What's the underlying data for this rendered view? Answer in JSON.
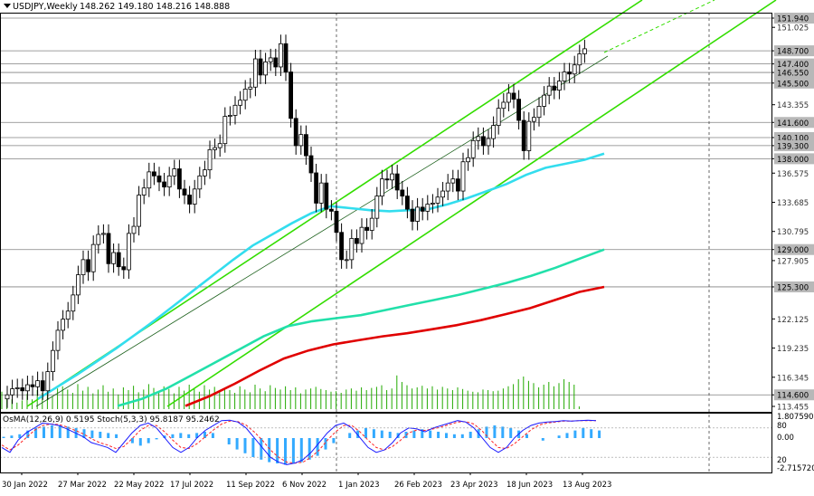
{
  "header": {
    "symbol_label": "USDJPY,Weekly",
    "ohlc_label": "148.262 149.180 148.216 148.888"
  },
  "indicator_label": "OsMA(12,26,9) 0.5195 Stoch(5,3,3) 95.8187 95.2462",
  "colors": {
    "background": "#ffffff",
    "candle": "#000000",
    "ema_fast": "#33ddee",
    "ema_mid": "#22e0aa",
    "ema_slow": "#e00000",
    "channel": "#33dd00",
    "hline": "#808080",
    "volume": "#22aa00",
    "osma": "#33aaff",
    "stoch_main": "#1a1aff",
    "stoch_signal": "#ff2222"
  },
  "chart_data": {
    "type": "candlestick",
    "ylim": [
      113.455,
      153.5
    ],
    "price_ticks": [
      "151.940",
      "151.025",
      "148.700",
      "147.400",
      "146.550",
      "145.500",
      "143.355",
      "141.600",
      "140.100",
      "139.300",
      "138.000",
      "136.575",
      "133.685",
      "130.795",
      "129.000",
      "127.905",
      "125.300",
      "122.125",
      "119.235",
      "116.345",
      "114.600",
      "113.455"
    ],
    "level_labels": [
      "151.940",
      "148.700",
      "147.400",
      "146.550",
      "145.500",
      "141.600",
      "140.100",
      "139.300",
      "138.000",
      "129.000",
      "125.300",
      "114.600"
    ],
    "x_labels": [
      "30 Jan 2022",
      "27 Mar 2022",
      "22 May 2022",
      "17 Jul 2022",
      "11 Sep 2022",
      "6 Nov 2022",
      "1 Jan 2023",
      "26 Feb 2023",
      "23 Apr 2023",
      "18 Jun 2023",
      "13 Aug 2023"
    ],
    "close": [
      114.6,
      115.2,
      115.3,
      115.0,
      115.6,
      115.4,
      116.0,
      115.0,
      116.9,
      119.0,
      121.0,
      122.1,
      122.9,
      124.5,
      126.5,
      128.0,
      126.8,
      129.5,
      130.5,
      130.6,
      127.6,
      128.7,
      127.3,
      127.0,
      130.6,
      131.3,
      134.4,
      135.1,
      136.7,
      136.3,
      135.7,
      135.2,
      136.3,
      137.0,
      135.0,
      134.4,
      133.5,
      135.0,
      136.3,
      136.9,
      138.9,
      139.1,
      139.5,
      142.2,
      142.3,
      143.3,
      143.8,
      144.9,
      145.1,
      147.9,
      146.3,
      147.6,
      148.0,
      147.1,
      149.4,
      146.6,
      142.0,
      139.3,
      140.4,
      138.3,
      136.6,
      133.6,
      135.6,
      133.0,
      132.8,
      130.7,
      128.0,
      128.0,
      130.1,
      129.6,
      131.2,
      130.9,
      132.1,
      134.3,
      136.0,
      135.9,
      136.5,
      134.9,
      134.3,
      133.0,
      131.8,
      133.2,
      132.8,
      133.5,
      133.6,
      134.2,
      134.8,
      135.6,
      136.0,
      134.8,
      137.7,
      138.1,
      139.8,
      140.2,
      139.3,
      140.0,
      141.3,
      143.0,
      143.6,
      144.5,
      143.9,
      141.8,
      138.8,
      141.7,
      142.1,
      143.2,
      144.3,
      145.2,
      144.8,
      145.7,
      146.6,
      146.4,
      147.3,
      148.4,
      148.9
    ],
    "ema_fast": [
      114.2,
      115.4,
      116.6,
      117.9,
      119.2,
      120.6,
      122.0,
      123.5,
      125.0,
      126.5,
      128.0,
      129.4,
      130.5,
      131.6,
      132.6,
      133.3,
      133.1,
      132.9,
      132.8,
      132.9,
      133.0,
      133.5,
      134.1,
      134.8,
      135.5,
      136.4,
      137.1,
      137.5,
      137.9,
      138.5
    ],
    "ema_mid": [
      113.5,
      114.2,
      115.2,
      116.5,
      117.8,
      119.1,
      120.4,
      121.4,
      121.9,
      122.2,
      122.5,
      123.0,
      123.5,
      124.0,
      124.5,
      125.1,
      125.7,
      126.4,
      127.2,
      128.1,
      129.0
    ],
    "ema_slow": [
      113.5,
      114.5,
      115.7,
      117.0,
      118.2,
      119.0,
      119.6,
      120.0,
      120.4,
      120.7,
      121.1,
      121.5,
      122.0,
      122.6,
      123.2,
      124.0,
      124.8,
      125.3
    ],
    "volume": [
      0.32,
      0.24,
      0.18,
      0.12,
      0.16,
      0.28,
      0.18,
      0.35,
      0.3,
      0.32,
      0.24,
      0.38,
      0.42,
      0.36,
      0.3,
      0.46,
      0.34,
      0.41,
      0.29,
      0.36,
      0.44,
      0.32,
      0.38,
      0.27,
      0.4,
      0.35,
      0.43,
      0.31,
      0.36,
      0.46,
      0.39,
      0.33,
      0.42,
      0.37,
      0.29,
      0.41,
      0.34,
      0.45,
      0.38,
      0.32,
      0.44,
      0.36,
      0.41,
      0.33,
      0.39,
      0.35,
      0.3,
      0.42,
      0.36,
      0.31,
      0.45,
      0.38,
      0.33,
      0.44,
      0.39,
      0.36,
      0.42,
      0.35,
      0.4,
      0.29,
      0.36,
      0.38,
      0.41,
      0.37,
      0.35,
      0.32,
      0.33,
      0.3,
      0.36,
      0.38,
      0.34,
      0.4,
      0.35,
      0.39,
      0.41,
      0.44,
      0.35,
      0.38,
      0.62,
      0.5,
      0.44,
      0.38,
      0.4,
      0.43,
      0.38,
      0.42,
      0.36,
      0.41,
      0.38,
      0.35,
      0.4,
      0.37,
      0.34,
      0.32,
      0.31,
      0.36,
      0.35,
      0.33,
      0.34,
      0.38,
      0.42,
      0.46,
      0.55,
      0.6,
      0.52,
      0.48,
      0.4,
      0.45,
      0.5,
      0.42,
      0.48,
      0.55,
      0.5,
      0.45,
      0.05
    ],
    "osma": [
      0.1,
      0.2,
      0.3,
      0.6,
      0.8,
      0.9,
      1.0,
      1.0,
      0.9,
      0.8,
      0.7,
      0.6,
      0.5,
      0.4,
      0.3,
      0.0,
      -0.4,
      -0.6,
      -0.4,
      -0.1,
      0.2,
      0.3,
      0.4,
      0.3,
      0.4,
      0.5,
      0.4,
      0.0,
      -0.5,
      -0.9,
      -1.2,
      -1.5,
      -1.7,
      -1.9,
      -2.0,
      -2.1,
      -2.0,
      -1.9,
      -1.7,
      -1.4,
      -0.9,
      -0.4,
      0.0,
      0.4,
      0.6,
      0.8,
      0.7,
      0.6,
      0.5,
      0.4,
      0.5,
      0.6,
      0.7,
      0.6,
      0.5,
      0.4,
      0.3,
      0.3,
      0.5,
      0.7,
      0.9,
      1.0,
      0.9,
      0.8,
      0.6,
      0.3,
      0.0,
      -0.2,
      0.0,
      0.2,
      0.4,
      0.6,
      0.8,
      0.7,
      0.6
    ],
    "stoch_main": [
      40,
      30,
      55,
      70,
      80,
      90,
      88,
      85,
      78,
      70,
      62,
      50,
      45,
      40,
      30,
      50,
      70,
      85,
      90,
      80,
      60,
      40,
      30,
      40,
      60,
      75,
      85,
      95,
      96,
      92,
      80,
      60,
      40,
      20,
      10,
      5,
      8,
      15,
      30,
      50,
      70,
      85,
      90,
      80,
      60,
      40,
      30,
      35,
      50,
      70,
      80,
      78,
      72,
      80,
      85,
      90,
      95,
      92,
      80,
      60,
      40,
      30,
      40,
      60,
      75,
      85,
      90,
      92,
      93,
      95,
      94,
      95,
      96,
      95
    ],
    "stoch_signal": [
      45,
      35,
      45,
      60,
      75,
      85,
      88,
      87,
      82,
      75,
      68,
      58,
      50,
      45,
      38,
      42,
      58,
      75,
      85,
      85,
      72,
      55,
      40,
      38,
      48,
      62,
      76,
      88,
      94,
      93,
      86,
      72,
      55,
      35,
      20,
      10,
      8,
      10,
      20,
      35,
      55,
      72,
      85,
      85,
      72,
      55,
      40,
      35,
      42,
      55,
      70,
      76,
      75,
      78,
      82,
      87,
      92,
      93,
      88,
      74,
      56,
      40,
      38,
      48,
      62,
      76,
      86,
      90,
      92,
      94,
      94,
      95,
      95,
      95
    ],
    "osc_ticks": [
      "1.807590",
      "80",
      "0.00",
      "20",
      "-2.715720"
    ]
  }
}
